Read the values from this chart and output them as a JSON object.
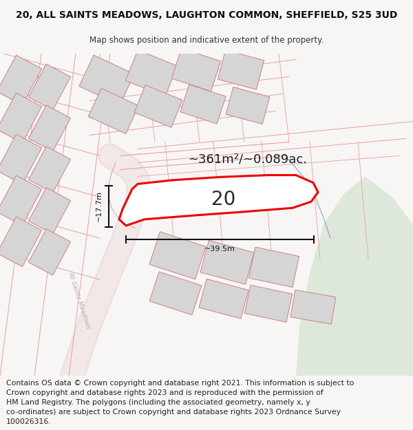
{
  "title": "20, ALL SAINTS MEADOWS, LAUGHTON COMMON, SHEFFIELD, S25 3UD",
  "subtitle": "Map shows position and indicative extent of the property.",
  "area_text": "~361m²/~0.089ac.",
  "number_label": "20",
  "dim_width": "~39.5m",
  "dim_height": "~17.7m",
  "footer_lines": [
    "Contains OS data © Crown copyright and database right 2021. This information is subject to",
    "Crown copyright and database rights 2023 and is reproduced with the permission of",
    "HM Land Registry. The polygons (including the associated geometry, namely x, y",
    "co-ordinates) are subject to Crown copyright and database rights 2023 Ordnance Survey",
    "100026316."
  ],
  "bg_color": "#f8f5f5",
  "map_bg": "#f8f5f5",
  "highlight_color": "#ee0000",
  "building_fill": "#d5d5d5",
  "building_edge": "#d08080",
  "road_line_color": "#e8a0a0",
  "green_fill": "#dde8da",
  "title_fontsize": 10,
  "subtitle_fontsize": 8.5,
  "footer_fontsize": 7.8,
  "area_fontsize": 13,
  "number_fontsize": 20
}
